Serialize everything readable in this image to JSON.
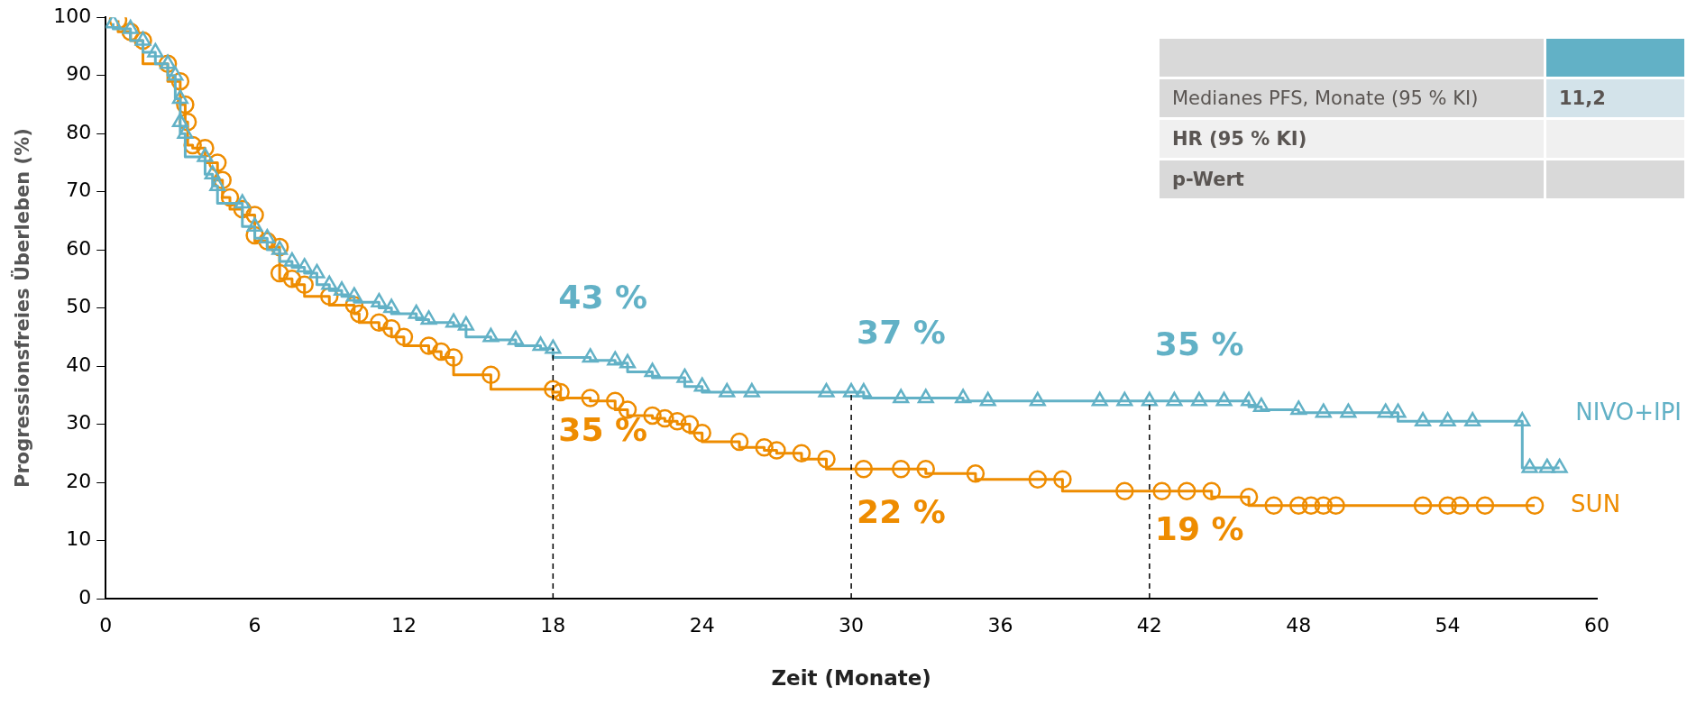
{
  "chart_data": {
    "type": "step",
    "xlabel": "Zeit (Monate)",
    "ylabel": "Progressionsfreies Überleben (%)",
    "xlim": [
      0,
      60
    ],
    "xticks": [
      0,
      6,
      12,
      18,
      24,
      30,
      36,
      42,
      48,
      54,
      60
    ],
    "ylim": [
      0,
      100
    ],
    "yticks": [
      0,
      10,
      20,
      30,
      40,
      50,
      60,
      70,
      80,
      90,
      100
    ],
    "grid": false,
    "legend": false,
    "line_style": "solid",
    "series": [
      {
        "name": "NIVO+IPI",
        "color": "#62b1c6",
        "marker": "triangle",
        "x": [
          0.3,
          1,
          1.5,
          2,
          2.5,
          2.8,
          3,
          3,
          3.2,
          4,
          4.3,
          4.5,
          5.5,
          6,
          6.5,
          7,
          7.5,
          8,
          8.5,
          9,
          9.5,
          10,
          11,
          11.5,
          12.5,
          13,
          14,
          14.5,
          15.5,
          16.5,
          17.5,
          18,
          19.5,
          20.5,
          21,
          22,
          23.3,
          24,
          25,
          26,
          29,
          30,
          30.5,
          32,
          33,
          34.5,
          35.5,
          37.5,
          40,
          41,
          42,
          43,
          44,
          45,
          46,
          46.5,
          48,
          49,
          50,
          51.5,
          52,
          53,
          54,
          55,
          57,
          57.3,
          58,
          58.5
        ],
        "values": [
          99,
          98,
          96,
          94,
          92,
          90,
          86,
          82,
          80,
          76,
          73,
          71,
          68,
          64,
          62,
          60,
          58,
          57,
          56,
          54,
          53,
          52,
          51,
          50,
          49,
          48,
          47.5,
          47,
          45,
          44.5,
          43.5,
          43,
          41.5,
          41,
          40.5,
          39,
          38,
          36.5,
          35.5,
          35.5,
          35.5,
          35.5,
          35.5,
          34.5,
          34.5,
          34.5,
          34,
          34,
          34,
          34,
          34,
          34,
          34,
          34,
          34,
          33,
          32.5,
          32,
          32,
          32,
          32,
          30.5,
          30.5,
          30.5,
          30.5,
          22.5,
          22.5,
          22.5
        ]
      },
      {
        "name": "SUN",
        "color": "#ee8c00",
        "marker": "circle",
        "x": [
          0.5,
          1,
          1.5,
          2.5,
          3,
          3.2,
          3.3,
          3.5,
          4,
          4.5,
          4.7,
          5,
          5.5,
          6,
          6,
          6.5,
          7,
          7,
          7.5,
          8,
          9,
          10,
          10.2,
          11,
          11.5,
          12,
          13,
          13.5,
          14,
          15.5,
          18,
          18.3,
          19.5,
          20.5,
          21,
          22,
          22.5,
          23,
          23.5,
          24,
          25.5,
          26.5,
          27,
          28,
          29,
          30.5,
          32,
          33,
          35,
          37.5,
          38.5,
          41,
          42.5,
          43.5,
          44.5,
          46,
          47,
          48,
          48.5,
          49,
          49.5,
          53,
          54,
          54.5,
          55.5,
          57.5
        ],
        "values": [
          99.5,
          97.5,
          96,
          92,
          89,
          85,
          82,
          78,
          77.5,
          75,
          72,
          69,
          67,
          66,
          62.5,
          61.5,
          60.5,
          56,
          55,
          54,
          52,
          50.5,
          49,
          47.5,
          46.5,
          45,
          43.5,
          42.5,
          41.5,
          38.5,
          36,
          35.5,
          34.5,
          34,
          32.5,
          31.5,
          31,
          30.5,
          30,
          28.5,
          27,
          26,
          25.5,
          25,
          24,
          22.3,
          22.3,
          22.3,
          21.5,
          20.5,
          20.5,
          18.5,
          18.5,
          18.5,
          18.5,
          17.5,
          16,
          16,
          16,
          16,
          16,
          16,
          16,
          16,
          16,
          16
        ]
      }
    ],
    "ref_lines": [
      {
        "axis": "x",
        "value": 18,
        "line_style": "dashed",
        "color": "#000000"
      },
      {
        "axis": "x",
        "value": 30,
        "line_style": "dashed",
        "color": "#000000"
      },
      {
        "axis": "x",
        "value": 42,
        "line_style": "dashed",
        "color": "#000000"
      }
    ],
    "annotations": [
      {
        "text": "43 %",
        "x": 18,
        "y": 43
      },
      {
        "text": "35 %",
        "x": 18,
        "y": 36
      },
      {
        "text": "37 %",
        "x": 30,
        "y": 37
      },
      {
        "text": "22 %",
        "x": 30,
        "y": 22
      },
      {
        "text": "35 %",
        "x": 42,
        "y": 35
      },
      {
        "text": "19 %",
        "x": 42,
        "y": 19
      },
      "Medianes PFS, Monate (95 % KI)",
      "HR (95 % KI)",
      "p-Wert",
      "11,2"
    ]
  }
}
